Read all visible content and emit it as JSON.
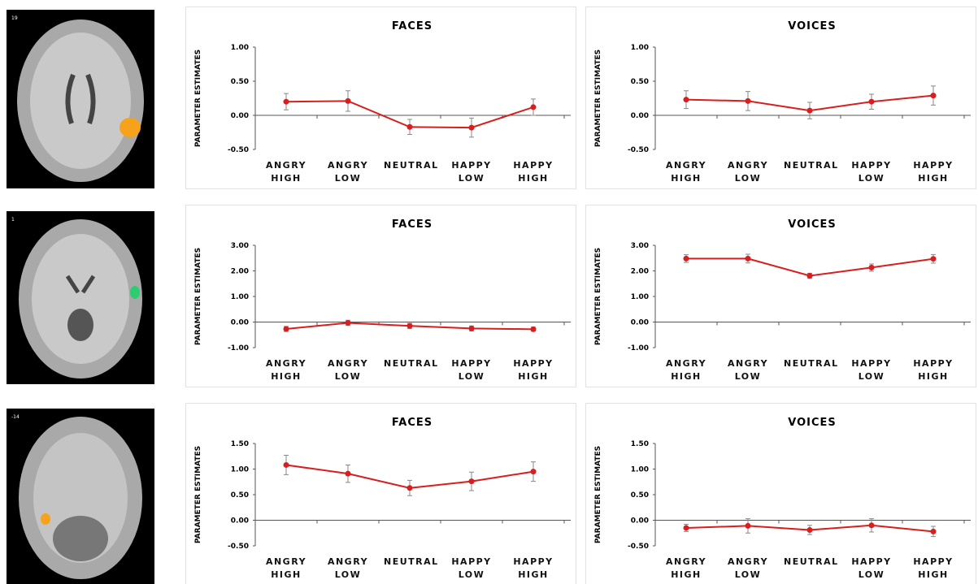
{
  "slices": [
    {
      "label": "19"
    },
    {
      "label": "1"
    },
    {
      "label": "-14"
    }
  ],
  "chart_data": [
    {
      "type": "line",
      "title": "FACES",
      "y_label": "PARAMETER ESTIMATES",
      "categories": [
        "ANGRY HIGH",
        "ANGRY LOW",
        "NEUTRAL",
        "HAPPY LOW",
        "HAPPY HIGH"
      ],
      "series": [
        {
          "color": "#d81e1e",
          "values": [
            0.2,
            0.21,
            -0.17,
            -0.18,
            0.12
          ],
          "errors": [
            0.12,
            0.15,
            0.11,
            0.14,
            0.12
          ]
        }
      ],
      "ylim": [
        -0.5,
        1.0
      ],
      "yticks": [
        {
          "value": -0.5,
          "label": "-0.50"
        },
        {
          "value": 0,
          "label": "0.00"
        },
        {
          "value": 0.5,
          "label": "0.50"
        },
        {
          "value": 1.0,
          "label": "1.00"
        }
      ]
    },
    {
      "type": "line",
      "title": "VOICES",
      "y_label": "PARAMETER ESTIMATES",
      "categories": [
        "ANGRY HIGH",
        "ANGRY LOW",
        "NEUTRAL",
        "HAPPY LOW",
        "HAPPY HIGH"
      ],
      "series": [
        {
          "color": "#d81e1e",
          "values": [
            0.23,
            0.21,
            0.07,
            0.2,
            0.29
          ],
          "errors": [
            0.13,
            0.14,
            0.12,
            0.11,
            0.14
          ]
        }
      ],
      "ylim": [
        -0.5,
        1.0
      ],
      "yticks": [
        {
          "value": -0.5,
          "label": "-0.50"
        },
        {
          "value": 0,
          "label": "0.00"
        },
        {
          "value": 0.5,
          "label": "0.50"
        },
        {
          "value": 1.0,
          "label": "1.00"
        }
      ]
    },
    {
      "type": "line",
      "title": "FACES",
      "y_label": "PARAMETER ESTIMATES",
      "categories": [
        "ANGRY HIGH",
        "ANGRY LOW",
        "NEUTRAL",
        "HAPPY LOW",
        "HAPPY HIGH"
      ],
      "series": [
        {
          "color": "#d81e1e",
          "values": [
            -0.27,
            -0.03,
            -0.15,
            -0.25,
            -0.28
          ],
          "errors": [
            0.1,
            0.1,
            0.1,
            0.1,
            0.08
          ]
        }
      ],
      "ylim": [
        -1,
        3
      ],
      "yticks": [
        {
          "value": -1,
          "label": "-1.00"
        },
        {
          "value": 0,
          "label": "0.00"
        },
        {
          "value": 1,
          "label": "1.00"
        },
        {
          "value": 2,
          "label": "2.00"
        },
        {
          "value": 3,
          "label": "3.00"
        }
      ]
    },
    {
      "type": "line",
      "title": "VOICES",
      "y_label": "PARAMETER ESTIMATES",
      "categories": [
        "ANGRY HIGH",
        "ANGRY LOW",
        "NEUTRAL",
        "HAPPY LOW",
        "HAPPY HIGH"
      ],
      "series": [
        {
          "color": "#d81e1e",
          "values": [
            2.48,
            2.48,
            1.81,
            2.13,
            2.47
          ],
          "errors": [
            0.15,
            0.17,
            0.1,
            0.14,
            0.17
          ]
        }
      ],
      "ylim": [
        -1,
        3
      ],
      "yticks": [
        {
          "value": -1,
          "label": "-1.00"
        },
        {
          "value": 0,
          "label": "0.00"
        },
        {
          "value": 1,
          "label": "1.00"
        },
        {
          "value": 2,
          "label": "2.00"
        },
        {
          "value": 3,
          "label": "3.00"
        }
      ]
    },
    {
      "type": "line",
      "title": "FACES",
      "y_label": "PARAMETER ESTIMATES",
      "categories": [
        "ANGRY HIGH",
        "ANGRY LOW",
        "NEUTRAL",
        "HAPPY LOW",
        "HAPPY HIGH"
      ],
      "series": [
        {
          "color": "#d81e1e",
          "values": [
            1.08,
            0.91,
            0.63,
            0.76,
            0.95
          ],
          "errors": [
            0.19,
            0.17,
            0.15,
            0.18,
            0.19
          ]
        }
      ],
      "ylim": [
        -0.5,
        1.5
      ],
      "yticks": [
        {
          "value": -0.5,
          "label": "-0.50"
        },
        {
          "value": 0,
          "label": "0.00"
        },
        {
          "value": 0.5,
          "label": "0.50"
        },
        {
          "value": 1.0,
          "label": "1.00"
        },
        {
          "value": 1.5,
          "label": "1.50"
        }
      ]
    },
    {
      "type": "line",
      "title": "VOICES",
      "y_label": "PARAMETER ESTIMATES",
      "categories": [
        "ANGRY HIGH",
        "ANGRY LOW",
        "NEUTRAL",
        "HAPPY LOW",
        "HAPPY HIGH"
      ],
      "series": [
        {
          "color": "#d81e1e",
          "values": [
            -0.15,
            -0.11,
            -0.19,
            -0.1,
            -0.22
          ],
          "errors": [
            0.07,
            0.14,
            0.09,
            0.13,
            0.1
          ]
        }
      ],
      "ylim": [
        -0.5,
        1.5
      ],
      "yticks": [
        {
          "value": -0.5,
          "label": "-0.50"
        },
        {
          "value": 0,
          "label": "0.00"
        },
        {
          "value": 0.5,
          "label": "0.50"
        },
        {
          "value": 1.0,
          "label": "1.00"
        },
        {
          "value": 1.5,
          "label": "1.50"
        }
      ]
    }
  ]
}
